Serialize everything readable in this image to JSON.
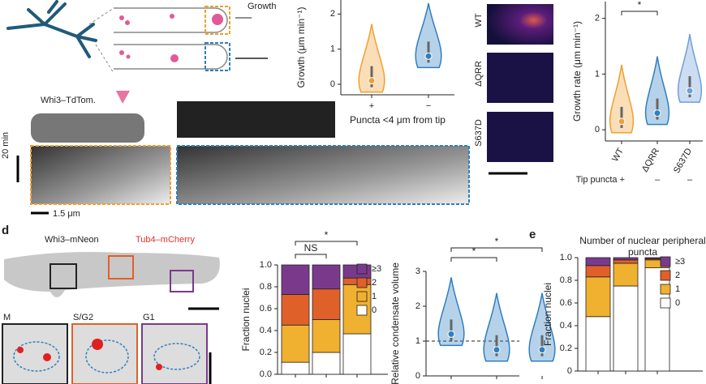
{
  "labels": {
    "growth": "Growth",
    "whi3_tdtom": "Whi3–TdTom.",
    "time_scale": "20 min",
    "length_scale": "1.5 μm",
    "panel_d": "d",
    "panel_e": "e",
    "whi3_mneon": "Whi3–mNeon",
    "tub4_mcherry": "Tub4–mCherry",
    "phase_m": "M",
    "phase_sg2": "S/G2",
    "phase_g1": "G1",
    "image_wt": "WT",
    "image_dqrr": "ΔQRR",
    "image_s637d": "S637D"
  },
  "chart_data": [
    {
      "type": "violin",
      "ylabel": "Growth (μm min⁻¹)",
      "xlabel": "Puncta <4 μm from tip",
      "categories": [
        "+",
        "−"
      ],
      "colors": [
        "#f0a030",
        "#2f7fc1"
      ],
      "values": [
        0.1,
        0.8
      ],
      "ylim": [
        -0.3,
        2.4
      ],
      "yticks": [
        0,
        1,
        2
      ]
    },
    {
      "type": "violin",
      "ylabel": "Growth rate (μm min⁻¹)",
      "categories": [
        "WT",
        "ΔQRR",
        "S637D"
      ],
      "colors": [
        "#f0a030",
        "#2f7fc1",
        "#6f9fd8"
      ],
      "values": [
        0.15,
        0.3,
        0.7
      ],
      "ylim": [
        -0.2,
        2.3
      ],
      "yticks": [
        0,
        1,
        2
      ],
      "row_label": "Tip puncta +",
      "row_marks": [
        "–",
        "–"
      ],
      "annotations": [
        "*"
      ]
    },
    {
      "type": "stacked_bar",
      "ylabel": "Fraction nuclei",
      "categories": [
        null,
        null,
        null
      ],
      "series": [
        {
          "name": "0",
          "color": "#ffffff",
          "values": [
            0.11,
            0.2,
            0.37
          ]
        },
        {
          "name": "1",
          "color": "#f0b030",
          "values": [
            0.34,
            0.3,
            0.45
          ]
        },
        {
          "name": "2",
          "color": "#e0602a",
          "values": [
            0.28,
            0.28,
            0.06
          ]
        },
        {
          "name": "≥3",
          "color": "#7a3a8c",
          "values": [
            0.27,
            0.22,
            0.12
          ]
        }
      ],
      "ylim": [
        0,
        1
      ],
      "yticks": [
        {
          "value": 0,
          "label": "0.0"
        },
        0.2,
        0.4,
        0.6,
        0.8,
        {
          "value": 1,
          "label": "1.0"
        }
      ],
      "annotations": [
        "NS",
        "*"
      ]
    },
    {
      "type": "violin",
      "ylabel": "Relative condensate volume",
      "categories": [
        null,
        null,
        null
      ],
      "colors": [
        "#2f7fc1",
        "#2f7fc1",
        "#2f7fc1"
      ],
      "values": [
        1.2,
        0.75,
        0.75
      ],
      "ylim": [
        0,
        3
      ],
      "yticks": [
        0,
        1,
        2,
        3
      ],
      "reference_line": 1,
      "annotations": [
        "*",
        "*"
      ]
    },
    {
      "type": "stacked_bar",
      "title": "Number of nuclear peripheral puncta",
      "ylabel": "Fraction nuclei",
      "categories": [
        null,
        null,
        null
      ],
      "series": [
        {
          "name": "0",
          "color": "#ffffff",
          "values": [
            0.48,
            0.75,
            0.91
          ]
        },
        {
          "name": "1",
          "color": "#f0b030",
          "values": [
            0.35,
            0.2,
            0.07
          ]
        },
        {
          "name": "2",
          "color": "#e0602a",
          "values": [
            0.1,
            0.03,
            0.01
          ]
        },
        {
          "name": "≥3",
          "color": "#7a3a8c",
          "values": [
            0.07,
            0.02,
            0.01
          ]
        }
      ],
      "ylim": [
        0,
        1
      ],
      "yticks": [
        0,
        0.2,
        0.4,
        0.6,
        0.8,
        {
          "value": 1,
          "label": "1.0"
        }
      ]
    }
  ]
}
